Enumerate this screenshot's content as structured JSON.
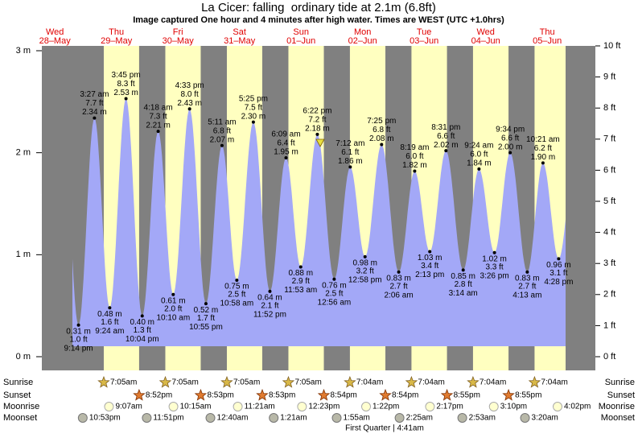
{
  "title": "La Cicer: falling  ordinary tide at 2.1m (6.8ft)",
  "subtitle": "Image captured One hour and 4 minutes after high water. Times are WEST (UTC +1.0hrs)",
  "chart_data": {
    "type": "tide",
    "ylim": [
      0,
      3
    ],
    "yticks": [
      {
        "value": 0,
        "label": "0 m"
      },
      {
        "value": 1,
        "label": "1 m"
      },
      {
        "value": 2,
        "label": "2 m"
      },
      {
        "value": 3,
        "label": "3 m"
      }
    ],
    "y2lim": [
      0,
      10
    ],
    "y2ticks": [
      {
        "value": 0,
        "label": "0 ft"
      },
      {
        "value": 1,
        "label": "1 ft"
      },
      {
        "value": 2,
        "label": "2 ft"
      },
      {
        "value": 3,
        "label": "3 ft"
      },
      {
        "value": 4,
        "label": "4 ft"
      },
      {
        "value": 5,
        "label": "5 ft"
      },
      {
        "value": 6,
        "label": "6 ft"
      },
      {
        "value": 7,
        "label": "7 ft"
      },
      {
        "value": 8,
        "label": "8 ft"
      },
      {
        "value": 9,
        "label": "9 ft"
      },
      {
        "value": 10,
        "label": "10 ft"
      }
    ],
    "days": [
      {
        "weekday": "Wed",
        "date": "28–May",
        "moonset": "10:53pm",
        "tides": [
          {
            "time": "9:14 pm",
            "height_m": 0.31,
            "height_m_label": "0.31 m",
            "height_ft": 1.0,
            "height_ft_label": "1.0 ft"
          }
        ]
      },
      {
        "weekday": "Thu",
        "date": "29–May",
        "sunrise": "7:05am",
        "sunset": "8:52pm",
        "moonrise": "9:07am",
        "moonset": "11:51pm",
        "tides": [
          {
            "time": "3:27 am",
            "height_m": 2.34,
            "height_m_label": "2.34 m",
            "height_ft": 7.7,
            "height_ft_label": "7.7 ft"
          },
          {
            "time": "9:24 am",
            "height_m": 0.48,
            "height_m_label": "0.48 m",
            "height_ft": 1.6,
            "height_ft_label": "1.6 ft"
          },
          {
            "time": "3:45 pm",
            "height_m": 2.53,
            "height_m_label": "2.53 m",
            "height_ft": 8.3,
            "height_ft_label": "8.3 ft"
          },
          {
            "time": "10:04 pm",
            "height_m": 0.4,
            "height_m_label": "0.40 m",
            "height_ft": 1.3,
            "height_ft_label": "1.3 ft"
          }
        ]
      },
      {
        "weekday": "Fri",
        "date": "30–May",
        "sunrise": "7:05am",
        "sunset": "8:53pm",
        "moonrise": "10:15am",
        "tides": [
          {
            "time": "4:18 am",
            "height_m": 2.21,
            "height_m_label": "2.21 m",
            "height_ft": 7.3,
            "height_ft_label": "7.3 ft"
          },
          {
            "time": "10:10 am",
            "height_m": 0.61,
            "height_m_label": "0.61 m",
            "height_ft": 2.0,
            "height_ft_label": "2.0 ft"
          },
          {
            "time": "4:33 pm",
            "height_m": 2.43,
            "height_m_label": "2.43 m",
            "height_ft": 8.0,
            "height_ft_label": "8.0 ft"
          },
          {
            "time": "10:55 pm",
            "height_m": 0.52,
            "height_m_label": "0.52 m",
            "height_ft": 1.7,
            "height_ft_label": "1.7 ft"
          }
        ]
      },
      {
        "weekday": "Sat",
        "date": "31–May",
        "sunrise": "7:05am",
        "sunset": "8:53pm",
        "moonrise": "11:21am",
        "moonset": "12:40am",
        "tides": [
          {
            "time": "5:11 am",
            "height_m": 2.07,
            "height_m_label": "2.07 m",
            "height_ft": 6.8,
            "height_ft_label": "6.8 ft"
          },
          {
            "time": "10:58 am",
            "height_m": 0.75,
            "height_m_label": "0.75 m",
            "height_ft": 2.5,
            "height_ft_label": "2.5 ft"
          },
          {
            "time": "5:25 pm",
            "height_m": 2.3,
            "height_m_label": "2.30 m",
            "height_ft": 7.5,
            "height_ft_label": "7.5 ft"
          },
          {
            "time": "11:52 pm",
            "height_m": 0.64,
            "height_m_label": "0.64 m",
            "height_ft": 2.1,
            "height_ft_label": "2.1 ft"
          }
        ]
      },
      {
        "weekday": "Sun",
        "date": "01–Jun",
        "sunrise": "7:05am",
        "sunset": "8:54pm",
        "moonrise": "12:23pm",
        "moonset": "1:21am",
        "tides": [
          {
            "time": "6:09 am",
            "height_m": 1.95,
            "height_m_label": "1.95 m",
            "height_ft": 6.4,
            "height_ft_label": "6.4 ft"
          },
          {
            "time": "11:53 am",
            "height_m": 0.88,
            "height_m_label": "0.88 m",
            "height_ft": 2.9,
            "height_ft_label": "2.9 ft"
          },
          {
            "time": "6:22 pm",
            "height_m": 2.18,
            "height_m_label": "2.18 m",
            "height_ft": 7.2,
            "height_ft_label": "7.2 ft"
          }
        ]
      },
      {
        "weekday": "Mon",
        "date": "02–Jun",
        "sunrise": "7:04am",
        "sunset": "8:54pm",
        "moonrise": "1:22pm",
        "moonset": "1:55am",
        "tides": [
          {
            "time": "12:56 am",
            "height_m": 0.76,
            "height_m_label": "0.76 m",
            "height_ft": 2.5,
            "height_ft_label": "2.5 ft"
          },
          {
            "time": "7:12 am",
            "height_m": 1.86,
            "height_m_label": "1.86 m",
            "height_ft": 6.1,
            "height_ft_label": "6.1 ft"
          },
          {
            "time": "12:58 pm",
            "height_m": 0.98,
            "height_m_label": "0.98 m",
            "height_ft": 3.2,
            "height_ft_label": "3.2 ft"
          },
          {
            "time": "7:25 pm",
            "height_m": 2.08,
            "height_m_label": "2.08 m",
            "height_ft": 6.8,
            "height_ft_label": "6.8 ft"
          }
        ]
      },
      {
        "weekday": "Tue",
        "date": "03–Jun",
        "sunrise": "7:04am",
        "sunset": "8:55pm",
        "moonrise": "2:17pm",
        "moonset": "2:25am",
        "tides": [
          {
            "time": "2:06 am",
            "height_m": 0.83,
            "height_m_label": "0.83 m",
            "height_ft": 2.7,
            "height_ft_label": "2.7 ft"
          },
          {
            "time": "8:19 am",
            "height_m": 1.82,
            "height_m_label": "1.82 m",
            "height_ft": 6.0,
            "height_ft_label": "6.0 ft"
          },
          {
            "time": "2:13 pm",
            "height_m": 1.03,
            "height_m_label": "1.03 m",
            "height_ft": 3.4,
            "height_ft_label": "3.4 ft"
          },
          {
            "time": "8:31 pm",
            "height_m": 2.02,
            "height_m_label": "2.02 m",
            "height_ft": 6.6,
            "height_ft_label": "6.6 ft"
          }
        ]
      },
      {
        "weekday": "Wed",
        "date": "04–Jun",
        "sunrise": "7:04am",
        "sunset": "8:55pm",
        "moonrise": "3:10pm",
        "moonset": "2:53am",
        "tides": [
          {
            "time": "3:14 am",
            "height_m": 0.85,
            "height_m_label": "0.85 m",
            "height_ft": 2.8,
            "height_ft_label": "2.8 ft"
          },
          {
            "time": "9:24 am",
            "height_m": 1.84,
            "height_m_label": "1.84 m",
            "height_ft": 6.0,
            "height_ft_label": "6.0 ft"
          },
          {
            "time": "3:26 pm",
            "height_m": 1.02,
            "height_m_label": "1.02 m",
            "height_ft": 3.3,
            "height_ft_label": "3.3 ft"
          },
          {
            "time": "9:34 pm",
            "height_m": 2.0,
            "height_m_label": "2.00 m",
            "height_ft": 6.6,
            "height_ft_label": "6.6 ft"
          }
        ]
      },
      {
        "weekday": "Thu",
        "date": "05–Jun",
        "sunrise": "7:04am",
        "moonrise": "4:02pm",
        "moonset": "3:20am",
        "tides": [
          {
            "time": "4:13 am",
            "height_m": 0.83,
            "height_m_label": "0.83 m",
            "height_ft": 2.7,
            "height_ft_label": "2.7 ft"
          },
          {
            "time": "10:21 am",
            "height_m": 1.9,
            "height_m_label": "1.90 m",
            "height_ft": 6.2,
            "height_ft_label": "6.2 ft"
          },
          {
            "time": "4:28 pm",
            "height_m": 0.96,
            "height_m_label": "0.96 m",
            "height_ft": 3.1,
            "height_ft_label": "3.1 ft"
          }
        ]
      }
    ]
  },
  "row_labels": {
    "sunrise": "Sunrise",
    "sunset": "Sunset",
    "moonrise": "Moonrise",
    "moonset": "Moonset"
  },
  "moon_phase": "First Quarter | 4:41am"
}
